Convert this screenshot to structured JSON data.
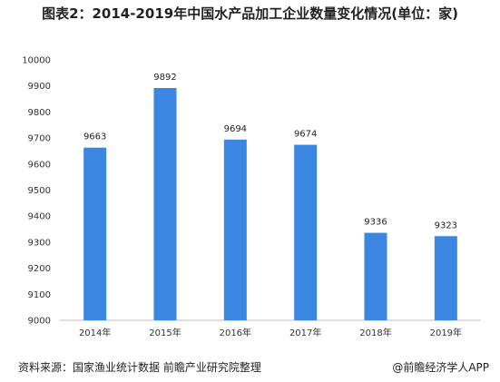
{
  "chart_data": {
    "type": "bar",
    "title": "图表2：2014-2019年中国水产品加工企业数量变化情况(单位：家)",
    "categories": [
      "2014年",
      "2015年",
      "2016年",
      "2017年",
      "2018年",
      "2019年"
    ],
    "values": [
      9663,
      9892,
      9694,
      9674,
      9336,
      9323
    ],
    "data_labels": [
      "9663",
      "9892",
      "9694",
      "9674",
      "9336",
      "9323"
    ],
    "ylim": [
      9000,
      10000
    ],
    "yticks": [
      9000,
      9100,
      9200,
      9300,
      9400,
      9500,
      9600,
      9700,
      9800,
      9900,
      10000
    ],
    "xlabel": "",
    "ylabel": "",
    "grid": false,
    "bar_color": "#3a86e0"
  },
  "footer": {
    "source": "资料来源：国家渔业统计数据 前瞻产业研究院整理",
    "brand": "@前瞻经济学人APP"
  }
}
